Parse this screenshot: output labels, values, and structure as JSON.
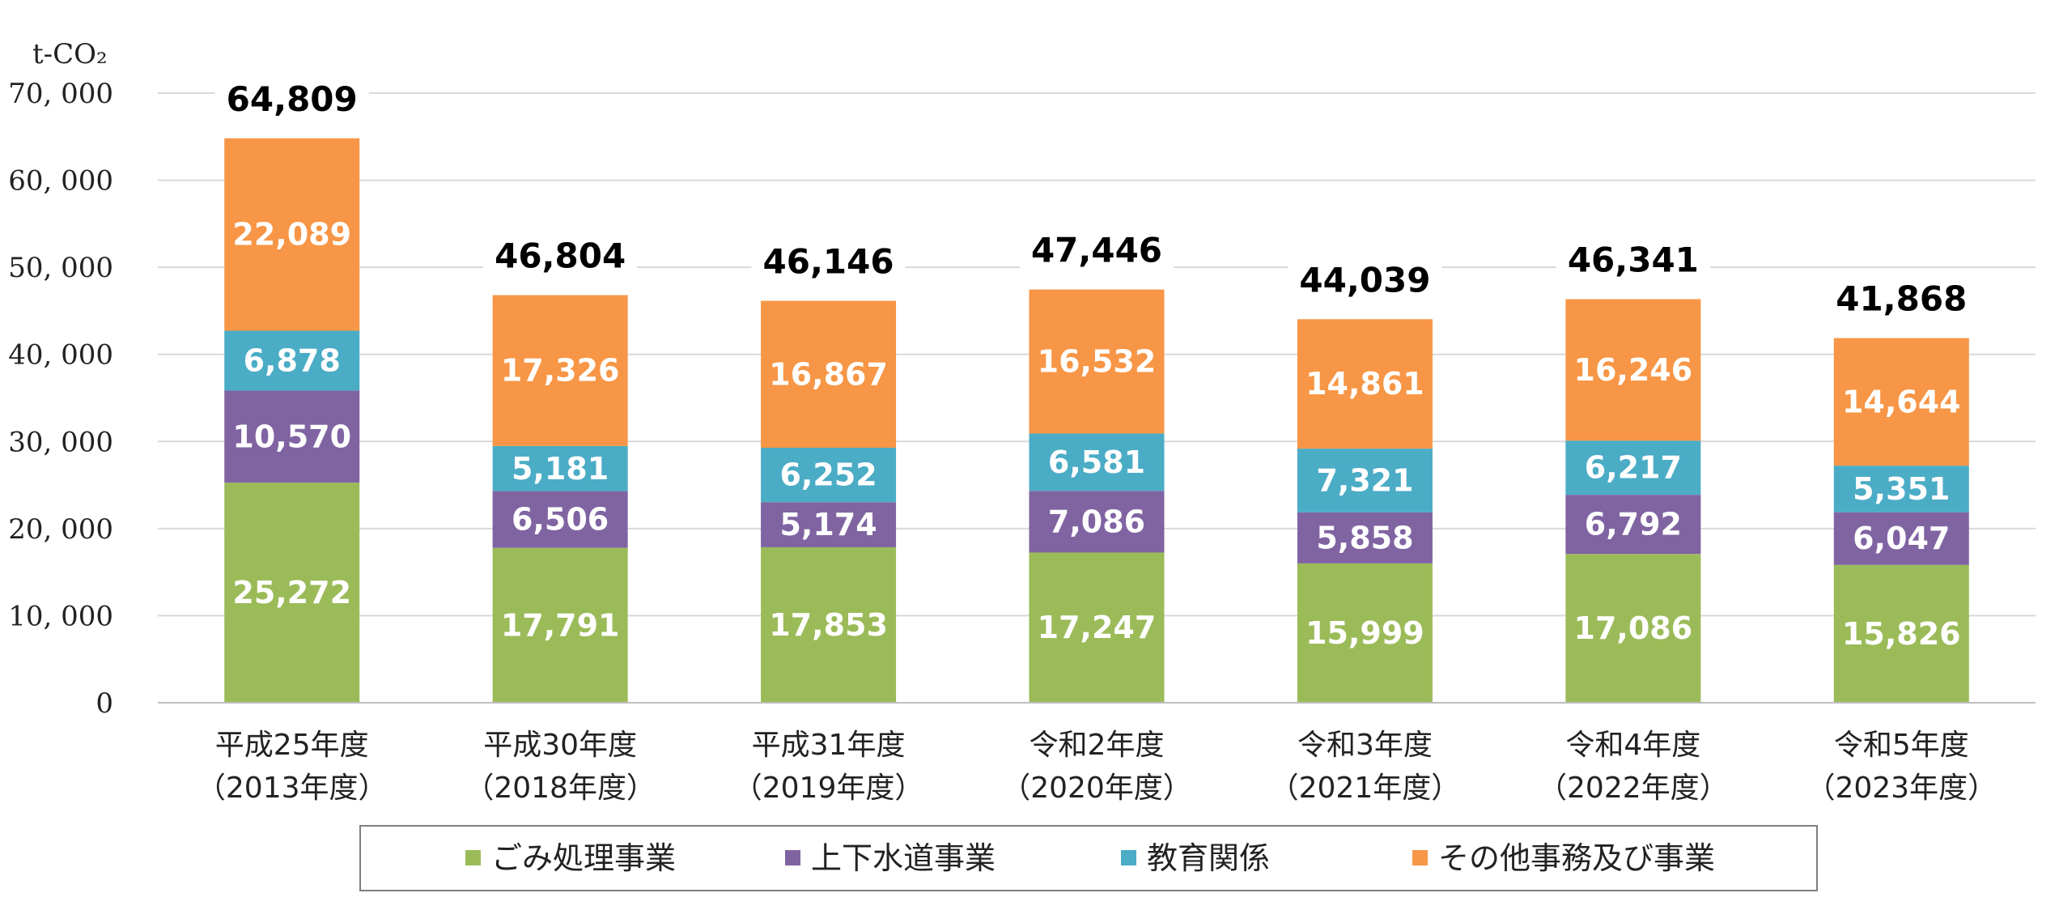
{
  "chart_data": {
    "type": "bar",
    "stacked": true,
    "unit": "t-CO₂",
    "ylim": [
      0,
      70000
    ],
    "yticks": [
      "0",
      "10, 000",
      "20, 000",
      "30, 000",
      "40, 000",
      "50, 000",
      "60, 000",
      "70, 000"
    ],
    "ytick_values": [
      0,
      10000,
      20000,
      30000,
      40000,
      50000,
      60000,
      70000
    ],
    "grid": true,
    "legend_position": "bottom",
    "categories": [
      {
        "line1": "平成25年度",
        "line2": "（2013年度）"
      },
      {
        "line1": "平成30年度",
        "line2": "（2018年度）"
      },
      {
        "line1": "平成31年度",
        "line2": "（2019年度）"
      },
      {
        "line1": "令和2年度",
        "line2": "（2020年度）"
      },
      {
        "line1": "令和3年度",
        "line2": "（2021年度）"
      },
      {
        "line1": "令和4年度",
        "line2": "（2022年度）"
      },
      {
        "line1": "令和5年度",
        "line2": "（2023年度）"
      }
    ],
    "series": [
      {
        "name": "ごみ処理事業",
        "color": "#9BBB59",
        "values": [
          25272,
          17791,
          17853,
          17247,
          15999,
          17086,
          15826
        ],
        "labels": [
          "25,272",
          "17,791",
          "17,853",
          "17,247",
          "15,999",
          "17,086",
          "15,826"
        ]
      },
      {
        "name": "上下水道事業",
        "color": "#8064A2",
        "values": [
          10570,
          6506,
          5174,
          7086,
          5858,
          6792,
          6047
        ],
        "labels": [
          "10,570",
          "6,506",
          "5,174",
          "7,086",
          "5,858",
          "6,792",
          "6,047"
        ]
      },
      {
        "name": "教育関係",
        "color": "#4BACC6",
        "values": [
          6878,
          5181,
          6252,
          6581,
          7321,
          6217,
          5351
        ],
        "labels": [
          "6,878",
          "5,181",
          "6,252",
          "6,581",
          "7,321",
          "6,217",
          "5,351"
        ]
      },
      {
        "name": "その他事務及び事業",
        "color": "#F79646",
        "values": [
          22089,
          17326,
          16867,
          16532,
          14861,
          16246,
          14644
        ],
        "labels": [
          "22,089",
          "17,326",
          "16,867",
          "16,532",
          "14,861",
          "16,246",
          "14,644"
        ]
      }
    ],
    "totals": [
      64809,
      46804,
      46146,
      47446,
      44039,
      46341,
      41868
    ],
    "total_labels": [
      "64,809",
      "46,804",
      "46,146",
      "47,446",
      "44,039",
      "46,341",
      "41,868"
    ]
  }
}
